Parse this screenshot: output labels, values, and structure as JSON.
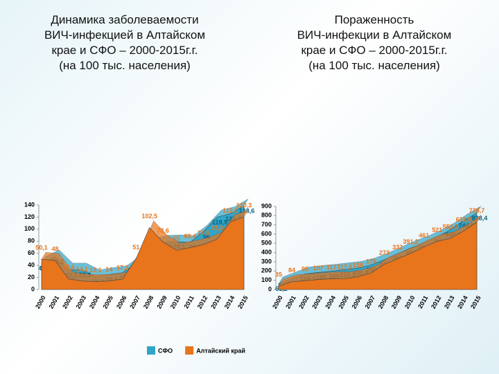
{
  "chart_data": [
    {
      "type": "area",
      "title": "Динамика заболеваемости\nВИЧ-инфекцией в Алтайском\nкрае и СФО – 2000-2015г.г.\n(на 100 тыс. населения)",
      "categories": [
        "2000",
        "2001",
        "2002",
        "2003",
        "2004",
        "2005",
        "2006",
        "2007",
        "2008",
        "2009",
        "2010",
        "2011",
        "2012",
        "2013",
        "2014",
        "2015"
      ],
      "series": [
        {
          "name": "СФО",
          "color": "#2fa6c8",
          "values": [
            43.3,
            54.1,
            32.2,
            32.3,
            20.9,
            24.8,
            27.8,
            43.4,
            72.8,
            78.2,
            79.1,
            78,
            96,
            119.9,
            125.7,
            138.6
          ],
          "value_labels": [
            "43,3",
            "54,1",
            "32,2",
            "32,3",
            "20,9",
            "24,8",
            "27,8",
            "43,4",
            "72,8",
            "78,2",
            "79,1",
            "78",
            "96",
            "119,9",
            "125,7",
            "138,6"
          ]
        },
        {
          "name": "Алтайский край",
          "color": "#e8741c",
          "values": [
            50.1,
            48,
            17.6,
            14.1,
            13.1,
            14,
            17.2,
            51,
            102.5,
            78.6,
            65,
            69.4,
            74.5,
            83.3,
            112,
            120.3
          ],
          "value_labels": [
            "50,1",
            "48",
            "17,6",
            "14,1",
            "13,1",
            "14",
            "17,2",
            "51",
            "102,5",
            "78,6",
            "65",
            "69,4",
            "74,5",
            "83,3",
            "112,0",
            "120,3"
          ]
        }
      ],
      "ylim": [
        0,
        140
      ],
      "yticks": [
        0,
        20,
        40,
        60,
        80,
        100,
        120,
        140
      ]
    },
    {
      "type": "area",
      "title": "Пораженность\nВИЧ-инфекции в Алтайском\nкрае и СФО – 2000-2015г.г.\n(на 100 тыс. населения)",
      "categories": [
        "2000",
        "2001",
        "2002",
        "2003",
        "2004",
        "2005",
        "2006",
        "2007",
        "2008",
        "2009",
        "2010",
        "2011",
        "2012",
        "2013",
        "2014",
        "2015"
      ],
      "series": [
        {
          "name": "СФО",
          "color": "#2fa6c8",
          "values": [
            61.2,
            115.1,
            168.2,
            185,
            198,
            214.3,
            230.8,
            266.4,
            322.6,
            387.2,
            450.1,
            503.6,
            570,
            646.6,
            744,
            828.4
          ],
          "value_labels": [
            "61,2",
            "115,1",
            "168,2",
            "185",
            "198",
            "214,3",
            "230,8",
            "266,4",
            "322,6",
            "387,2",
            "450,1",
            "503,6",
            "570",
            "646,6",
            "744,0",
            "828,4"
          ]
        },
        {
          "name": "Алтайский край",
          "color": "#e8741c",
          "values": [
            35,
            84,
            95,
            107,
            117,
            117.6,
            138,
            179,
            273,
            332,
            391.2,
            461,
            521,
            553.2,
            632.8,
            728.7
          ],
          "value_labels": [
            "35",
            "84",
            "95",
            "107",
            "117",
            "117,6",
            "138",
            "179",
            "273",
            "332",
            "391,2",
            "461",
            "521",
            "553,2",
            "632,8",
            "728,7"
          ]
        }
      ],
      "ylim": [
        0,
        900
      ],
      "yticks": [
        0,
        100,
        200,
        300,
        400,
        500,
        600,
        700,
        800,
        900
      ]
    }
  ]
}
